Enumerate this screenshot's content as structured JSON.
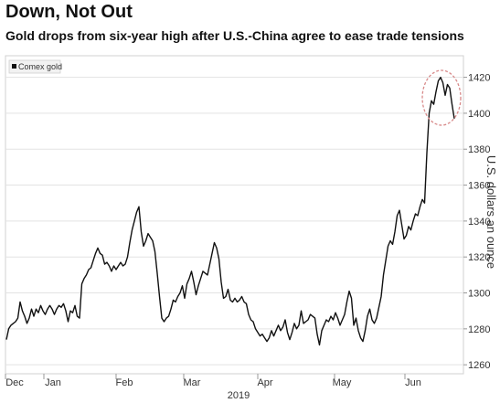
{
  "chart_data": {
    "type": "line",
    "title": "Down, Not Out",
    "subtitle": "Gold drops from six-year high after U.S.-China agree to ease trade tensions",
    "ylabel": "U.S. dollars an ounce",
    "xlabel": "2019",
    "ylim": [
      1255,
      1432
    ],
    "yticks": [
      1260,
      1280,
      1300,
      1320,
      1340,
      1360,
      1380,
      1400,
      1420
    ],
    "xticks": [
      "Dec",
      "Jan",
      "Feb",
      "Mar",
      "Apr",
      "May",
      "Jun"
    ],
    "grid": true,
    "legend_position": "top-left",
    "series": [
      {
        "name": "Comex gold",
        "color": "#111111",
        "values": [
          1274,
          1280,
          1282,
          1283,
          1284,
          1286,
          1295,
          1290,
          1287,
          1283,
          1286,
          1291,
          1287,
          1291,
          1289,
          1293,
          1290,
          1288,
          1291,
          1293,
          1291,
          1288,
          1291,
          1293,
          1292,
          1294,
          1290,
          1284,
          1290,
          1289,
          1293,
          1287,
          1286,
          1305,
          1308,
          1310,
          1313,
          1314,
          1318,
          1322,
          1325,
          1322,
          1321,
          1316,
          1317,
          1315,
          1312,
          1315,
          1313,
          1315,
          1317,
          1315,
          1316,
          1320,
          1328,
          1335,
          1340,
          1345,
          1348,
          1334,
          1326,
          1329,
          1333,
          1331,
          1329,
          1323,
          1311,
          1298,
          1286,
          1284,
          1286,
          1287,
          1291,
          1296,
          1295,
          1298,
          1300,
          1304,
          1297,
          1305,
          1308,
          1312,
          1306,
          1299,
          1304,
          1308,
          1312,
          1311,
          1310,
          1316,
          1322,
          1328,
          1325,
          1319,
          1306,
          1297,
          1298,
          1302,
          1296,
          1295,
          1297,
          1295,
          1296,
          1298,
          1295,
          1294,
          1288,
          1285,
          1284,
          1280,
          1278,
          1276,
          1277,
          1275,
          1273,
          1275,
          1279,
          1276,
          1279,
          1282,
          1279,
          1281,
          1285,
          1278,
          1274,
          1278,
          1283,
          1280,
          1282,
          1290,
          1283,
          1284,
          1285,
          1288,
          1287,
          1286,
          1277,
          1271,
          1279,
          1282,
          1285,
          1284,
          1287,
          1285,
          1289,
          1286,
          1282,
          1285,
          1288,
          1295,
          1301,
          1297,
          1282,
          1286,
          1279,
          1275,
          1273,
          1279,
          1287,
          1291,
          1285,
          1283,
          1286,
          1292,
          1298,
          1310,
          1318,
          1326,
          1329,
          1327,
          1334,
          1343,
          1346,
          1338,
          1330,
          1332,
          1337,
          1335,
          1340,
          1344,
          1343,
          1348,
          1352,
          1350,
          1378,
          1400,
          1407,
          1405,
          1412,
          1418,
          1420,
          1417,
          1410,
          1416,
          1414,
          1405,
          1397
        ]
      }
    ],
    "highlight_circle": "around peak near 1420 (late June)"
  }
}
